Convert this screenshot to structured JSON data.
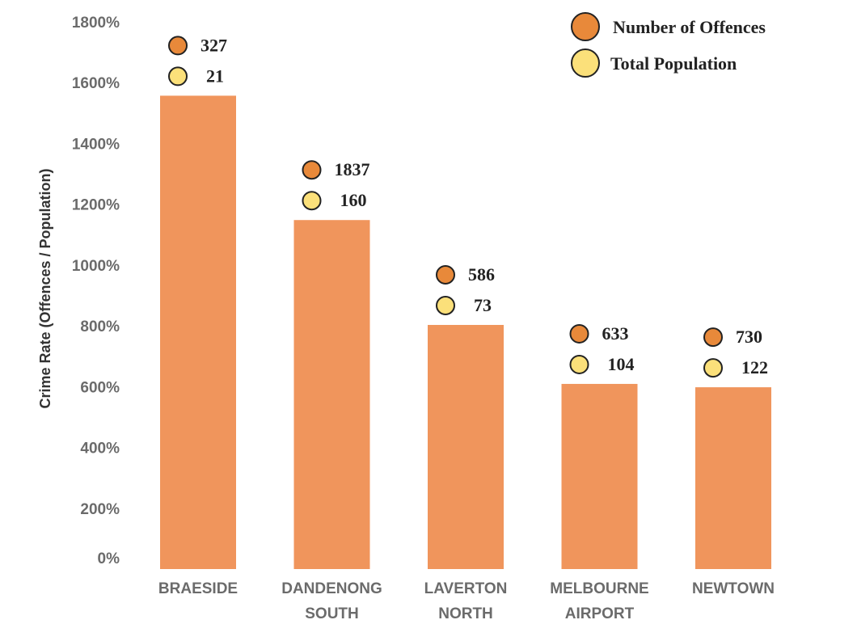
{
  "chart_data": {
    "type": "bar",
    "ylabel": "Crime Rate (Offences / Population)",
    "ylim": [
      0,
      1800
    ],
    "yticks": [
      "1800%",
      "1600%",
      "1400%",
      "1200%",
      "1000%",
      "800%",
      "600%",
      "400%",
      "200%",
      "0%"
    ],
    "ytick_values": [
      1800,
      1600,
      1400,
      1200,
      1000,
      800,
      600,
      400,
      200,
      0
    ],
    "categories": [
      [
        "BRAESIDE"
      ],
      [
        "DANDENONG",
        "SOUTH"
      ],
      [
        "LAVERTON",
        "NORTH"
      ],
      [
        "MELBOURNE",
        "AIRPORT"
      ],
      [
        "NEWTOWN"
      ]
    ],
    "values": [
      1557,
      1148,
      803,
      609,
      598
    ],
    "offences": [
      "327",
      "1837",
      "586",
      "633",
      "730"
    ],
    "population": [
      "21",
      "160",
      "73",
      "104",
      "122"
    ],
    "legend": {
      "placement": "top-right",
      "entries": [
        {
          "label": "Number of Offences",
          "color": "#e8893a"
        },
        {
          "label": "Total Population",
          "color": "#fbe07a"
        }
      ]
    },
    "bar_color": "#f0955c",
    "grid": false
  }
}
